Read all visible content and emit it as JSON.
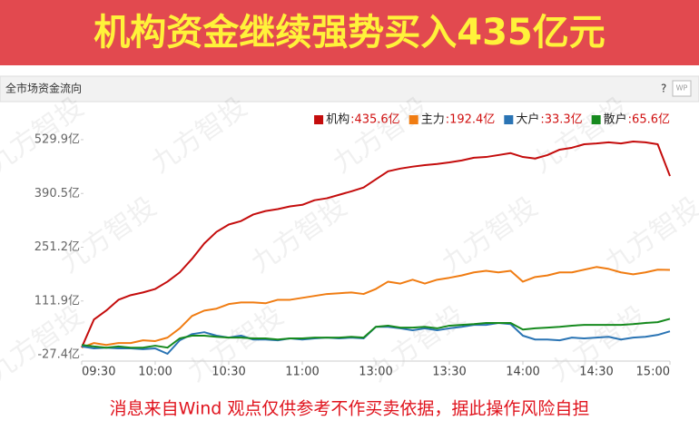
{
  "banner": {
    "title": "机构资金继续强势买入435亿元"
  },
  "panel": {
    "title": "全市场资金流向",
    "help": "?",
    "icon_text": "WP"
  },
  "watermark": "九方智投",
  "footer": "消息来自Wind  观点仅供参考不作买卖依据，据此操作风险自担",
  "chart_data": {
    "type": "line",
    "x": [
      0,
      5,
      10,
      15,
      20,
      25,
      30,
      35,
      40,
      45,
      50,
      55,
      60,
      65,
      70,
      75,
      80,
      85,
      90,
      95,
      100,
      105,
      110,
      115,
      120,
      125,
      130,
      135,
      140,
      145,
      150,
      155,
      160,
      165,
      170,
      175,
      180,
      185,
      190,
      195,
      200,
      205,
      210,
      215,
      220,
      225,
      230,
      235,
      240
    ],
    "xlim": [
      0,
      240
    ],
    "xticks": [
      {
        "value": 0,
        "label": "09:30"
      },
      {
        "value": 30,
        "label": "10:00"
      },
      {
        "value": 60,
        "label": "10:30"
      },
      {
        "value": 90,
        "label": "11:00"
      },
      {
        "value": 120,
        "label": "13:00"
      },
      {
        "value": 150,
        "label": "13:30"
      },
      {
        "value": 180,
        "label": "14:00"
      },
      {
        "value": 210,
        "label": "14:30"
      },
      {
        "value": 240,
        "label": "15:00"
      }
    ],
    "ylim": [
      -43.8,
      562.7
    ],
    "yticks": [
      {
        "value": -27.4,
        "label": "-27.4亿"
      },
      {
        "value": 111.9,
        "label": "111.9亿"
      },
      {
        "value": 251.2,
        "label": "251.2亿"
      },
      {
        "value": 390.5,
        "label": "390.5亿"
      },
      {
        "value": 529.9,
        "label": "529.9亿"
      }
    ],
    "series": [
      {
        "name": "机构",
        "legend_label": ":435.6亿",
        "color": "#c40c0c",
        "values": [
          -8.7,
          64,
          87,
          115,
          127,
          134,
          143,
          162,
          186,
          221,
          261,
          291,
          310,
          319,
          336,
          345,
          350,
          357,
          361,
          373,
          378,
          387,
          396,
          406,
          427,
          448,
          455,
          460,
          464,
          467,
          471,
          476,
          483,
          485,
          490,
          495,
          485,
          481,
          490,
          504,
          509,
          518,
          520,
          523,
          520,
          525,
          523,
          518,
          435.6
        ]
      },
      {
        "name": "主力",
        "legend_label": ":192.4亿",
        "color": "#f07c12",
        "values": [
          -8.7,
          3,
          -2,
          3,
          3,
          10,
          8,
          17,
          41,
          73,
          87,
          92,
          104,
          108,
          108,
          106,
          115,
          115,
          120,
          125,
          130,
          132,
          134,
          130,
          143,
          162,
          157,
          167,
          157,
          167,
          172,
          178,
          186,
          190,
          186,
          190,
          162,
          174,
          178,
          186,
          186,
          193,
          200,
          195,
          186,
          181,
          186,
          193,
          192.4
        ]
      },
      {
        "name": "大户",
        "legend_label": ":33.3亿",
        "color": "#2a74b4",
        "values": [
          -6,
          -11,
          -9,
          -11,
          -11,
          -13,
          -11,
          -25,
          10,
          26,
          31,
          22,
          17,
          22,
          12,
          12,
          10,
          15,
          12,
          15,
          17,
          15,
          17,
          15,
          45,
          45,
          41,
          36,
          41,
          36,
          41,
          45,
          50,
          50,
          55,
          52,
          22,
          12,
          12,
          10,
          17,
          15,
          17,
          19,
          12,
          17,
          19,
          24,
          33.3
        ]
      },
      {
        "name": "散户",
        "legend_label": ":65.6亿",
        "color": "#168a1e",
        "values": [
          -2,
          -6,
          -9,
          -6,
          -9,
          -9,
          -4,
          -9,
          15,
          22,
          22,
          19,
          17,
          17,
          15,
          15,
          12,
          15,
          15,
          17,
          17,
          17,
          19,
          17,
          45,
          48,
          43,
          43,
          45,
          41,
          48,
          50,
          52,
          55,
          55,
          55,
          38,
          41,
          43,
          45,
          48,
          50,
          50,
          50,
          50,
          52,
          55,
          57,
          65.6
        ]
      }
    ]
  }
}
